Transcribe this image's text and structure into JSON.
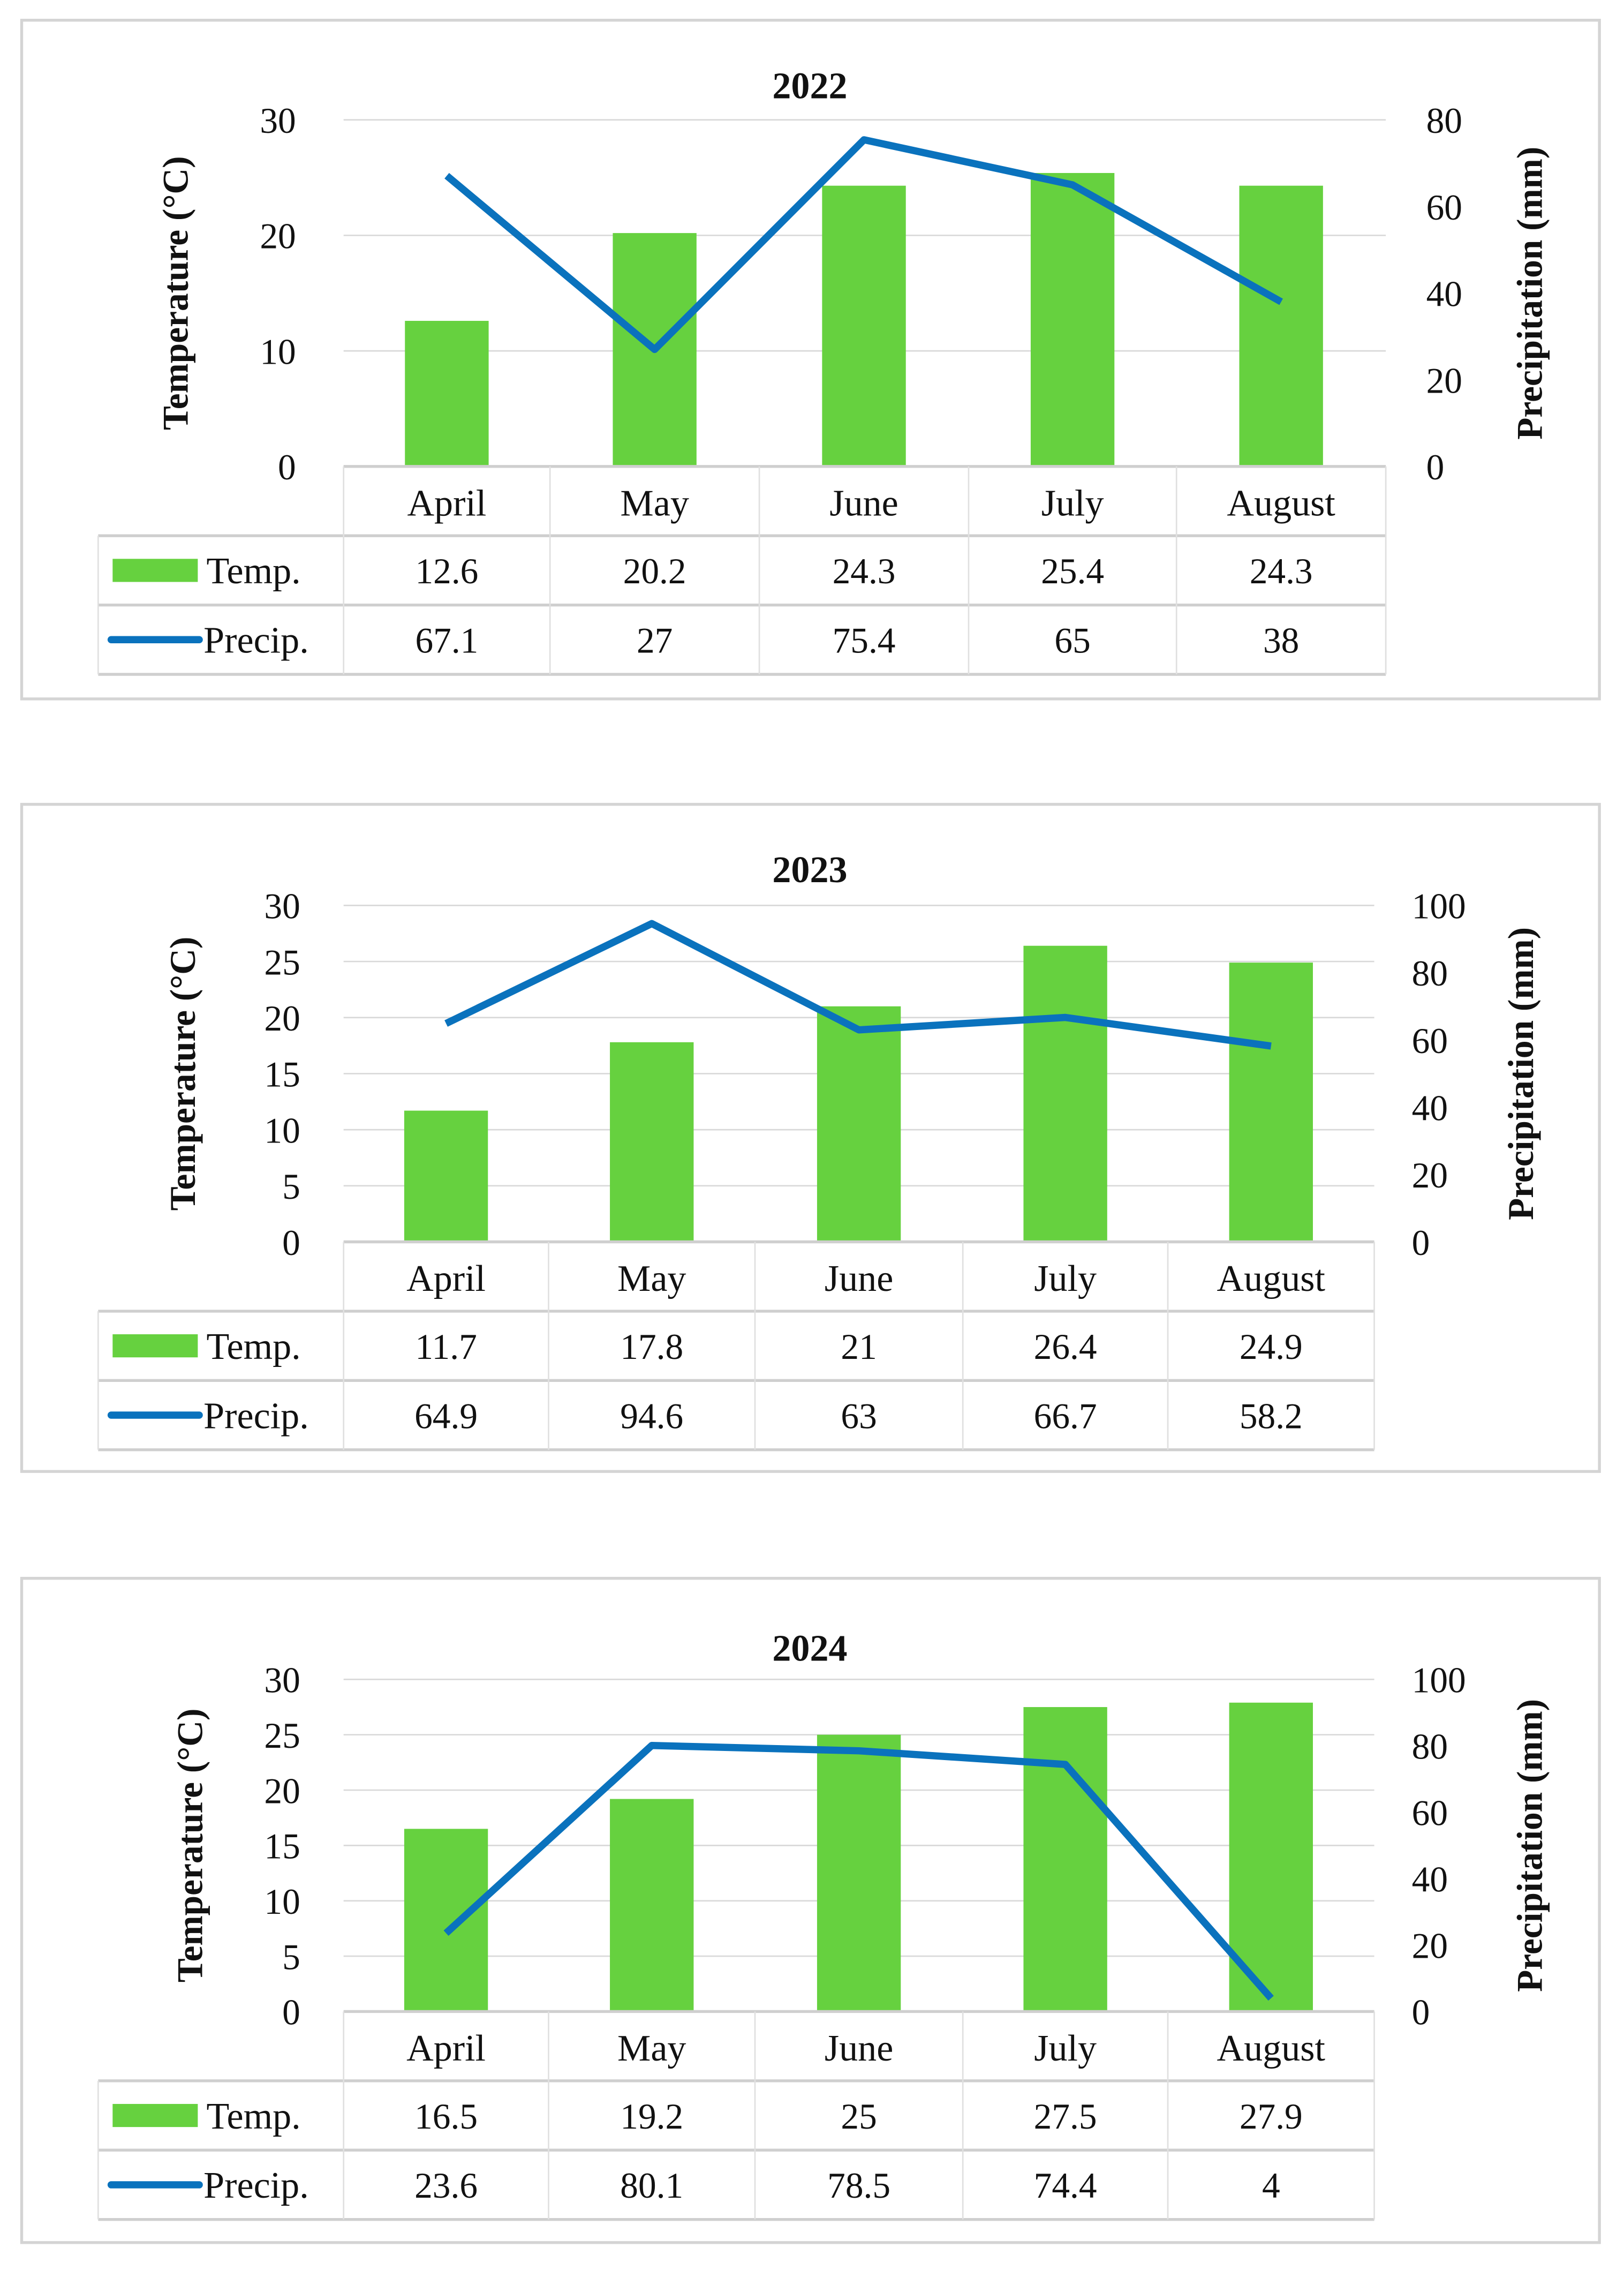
{
  "chart_data": [
    {
      "type": "bar+line",
      "title": "2022",
      "categories": [
        "April",
        "May",
        "June",
        "July",
        "August"
      ],
      "series": [
        {
          "name": "Temp.",
          "type": "bar",
          "axis": "left",
          "color": "#66D13F",
          "values": [
            12.6,
            20.2,
            24.3,
            25.4,
            24.3
          ]
        },
        {
          "name": "Precip.",
          "type": "line",
          "axis": "right",
          "color": "#0A72BD",
          "values": [
            67.1,
            27,
            75.4,
            65,
            38
          ]
        }
      ],
      "ylabel": "Temperature (°C)",
      "y2label": "Precipitation (mm)",
      "ylim": [
        0,
        30
      ],
      "yticks": [
        0,
        10,
        20,
        30
      ],
      "y2lim": [
        0,
        80
      ],
      "y2ticks": [
        0,
        20,
        40,
        60,
        80
      ],
      "grid": true,
      "legend": "data-table-below"
    },
    {
      "type": "bar+line",
      "title": "2023",
      "categories": [
        "April",
        "May",
        "June",
        "July",
        "August"
      ],
      "series": [
        {
          "name": "Temp.",
          "type": "bar",
          "axis": "left",
          "color": "#66D13F",
          "values": [
            11.7,
            17.8,
            21,
            26.4,
            24.9
          ]
        },
        {
          "name": "Precip.",
          "type": "line",
          "axis": "right",
          "color": "#0A72BD",
          "values": [
            64.9,
            94.6,
            63,
            66.7,
            58.2
          ]
        }
      ],
      "ylabel": "Temperature (°C)",
      "y2label": "Precipitation (mm)",
      "ylim": [
        0,
        30
      ],
      "yticks": [
        0,
        5,
        10,
        15,
        20,
        25,
        30
      ],
      "y2lim": [
        0,
        100
      ],
      "y2ticks": [
        0,
        20,
        40,
        60,
        80,
        100
      ],
      "grid": true,
      "legend": "data-table-below"
    },
    {
      "type": "bar+line",
      "title": "2024",
      "categories": [
        "April",
        "May",
        "June",
        "July",
        "August"
      ],
      "series": [
        {
          "name": "Temp.",
          "type": "bar",
          "axis": "left",
          "color": "#66D13F",
          "values": [
            16.5,
            19.2,
            25,
            27.5,
            27.9
          ]
        },
        {
          "name": "Precip.",
          "type": "line",
          "axis": "right",
          "color": "#0A72BD",
          "values": [
            23.6,
            80.1,
            78.5,
            74.4,
            4
          ]
        }
      ],
      "ylabel": "Temperature (°C)",
      "y2label": "Precipitation (mm)",
      "ylim": [
        0,
        30
      ],
      "yticks": [
        0,
        5,
        10,
        15,
        20,
        25,
        30
      ],
      "y2lim": [
        0,
        100
      ],
      "y2ticks": [
        0,
        20,
        40,
        60,
        80,
        100
      ],
      "grid": true,
      "legend": "data-table-below"
    }
  ]
}
